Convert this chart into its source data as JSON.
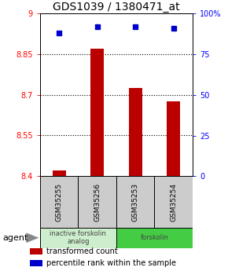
{
  "title": "GDS1039 / 1380471_at",
  "samples": [
    "GSM35255",
    "GSM35256",
    "GSM35253",
    "GSM35254"
  ],
  "bar_values": [
    8.42,
    8.87,
    8.725,
    8.675
  ],
  "percentile_values": [
    88,
    92,
    92,
    91
  ],
  "ylim_left": [
    8.4,
    9.0
  ],
  "ylim_right": [
    0,
    100
  ],
  "yticks_left": [
    8.4,
    8.55,
    8.7,
    8.85,
    9.0
  ],
  "yticks_right": [
    0,
    25,
    50,
    75,
    100
  ],
  "ytick_labels_left": [
    "8.4",
    "8.55",
    "8.7",
    "8.85",
    "9"
  ],
  "ytick_labels_right": [
    "0",
    "25",
    "50",
    "75",
    "100%"
  ],
  "hlines": [
    8.55,
    8.7,
    8.85
  ],
  "bar_color": "#bb0000",
  "dot_color": "#0000cc",
  "agent_groups": [
    {
      "label": "inactive forskolin\nanalog",
      "color": "#cceecc",
      "start": 0,
      "end": 2
    },
    {
      "label": "forskolin",
      "color": "#44cc44",
      "start": 2,
      "end": 4
    }
  ],
  "legend_items": [
    {
      "color": "#bb0000",
      "label": "transformed count"
    },
    {
      "color": "#0000cc",
      "label": "percentile rank within the sample"
    }
  ],
  "agent_label": "agent",
  "title_fontsize": 10,
  "tick_fontsize": 7,
  "sample_fontsize": 6.5,
  "legend_fontsize": 7,
  "agent_fontsize": 8,
  "bar_width": 0.35
}
